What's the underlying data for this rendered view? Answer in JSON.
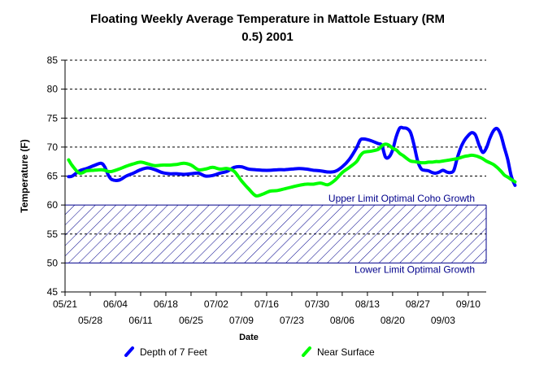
{
  "chart_data": {
    "type": "line",
    "title_line1": "Floating Weekly Average Temperature in Mattole Estuary (RM",
    "title_line2": "0.5) 2001",
    "xlabel": "Date",
    "ylabel": "Temperature (F)",
    "ylim": [
      45,
      85
    ],
    "yticks": [
      "45",
      "50",
      "55",
      "60",
      "65",
      "70",
      "75",
      "80",
      "85"
    ],
    "xlim": [
      "05/21",
      "09/15"
    ],
    "xticks_upper": [
      "05/21",
      "06/04",
      "06/18",
      "07/02",
      "07/16",
      "07/30",
      "08/13",
      "08/27",
      "09/10"
    ],
    "xticks_lower": [
      "05/28",
      "06/11",
      "06/25",
      "07/09",
      "07/23",
      "08/06",
      "08/20",
      "09/03"
    ],
    "grid": "horizontal dashed",
    "legend_position": "bottom",
    "band": {
      "upper": 60,
      "lower": 50,
      "upper_label": "Upper Limit Optimal Coho Growth",
      "lower_label": "Lower Limit Optimal Growth",
      "color": "#00008b"
    },
    "series": [
      {
        "name": "Depth of 7 Feet",
        "color": "#0000ff",
        "points": [
          [
            "05/22",
            64.9
          ],
          [
            "05/23",
            65.0
          ],
          [
            "05/25",
            65.9
          ],
          [
            "05/27",
            66.3
          ],
          [
            "05/29",
            66.8
          ],
          [
            "05/31",
            67.2
          ],
          [
            "06/01",
            66.6
          ],
          [
            "06/02",
            65.2
          ],
          [
            "06/03",
            64.4
          ],
          [
            "06/05",
            64.3
          ],
          [
            "06/07",
            65.0
          ],
          [
            "06/09",
            65.5
          ],
          [
            "06/11",
            66.1
          ],
          [
            "06/13",
            66.4
          ],
          [
            "06/15",
            66.1
          ],
          [
            "06/17",
            65.6
          ],
          [
            "06/19",
            65.4
          ],
          [
            "06/21",
            65.4
          ],
          [
            "06/23",
            65.3
          ],
          [
            "06/25",
            65.4
          ],
          [
            "06/27",
            65.5
          ],
          [
            "06/29",
            65.0
          ],
          [
            "07/01",
            65.1
          ],
          [
            "07/03",
            65.5
          ],
          [
            "07/05",
            65.8
          ],
          [
            "07/07",
            66.5
          ],
          [
            "07/09",
            66.6
          ],
          [
            "07/11",
            66.2
          ],
          [
            "07/13",
            66.1
          ],
          [
            "07/15",
            66.0
          ],
          [
            "07/17",
            66.0
          ],
          [
            "07/19",
            66.1
          ],
          [
            "07/21",
            66.1
          ],
          [
            "07/23",
            66.2
          ],
          [
            "07/25",
            66.3
          ],
          [
            "07/27",
            66.2
          ],
          [
            "07/29",
            66.0
          ],
          [
            "07/31",
            65.9
          ],
          [
            "08/02",
            65.7
          ],
          [
            "08/04",
            65.8
          ],
          [
            "08/06",
            66.6
          ],
          [
            "08/08",
            67.9
          ],
          [
            "08/10",
            69.9
          ],
          [
            "08/11",
            71.2
          ],
          [
            "08/12",
            71.4
          ],
          [
            "08/14",
            71.1
          ],
          [
            "08/16",
            70.6
          ],
          [
            "08/17",
            70.3
          ],
          [
            "08/18",
            68.3
          ],
          [
            "08/19",
            68.3
          ],
          [
            "08/20",
            69.5
          ],
          [
            "08/21",
            71.8
          ],
          [
            "08/22",
            73.3
          ],
          [
            "08/23",
            73.3
          ],
          [
            "08/24",
            73.2
          ],
          [
            "08/25",
            72.5
          ],
          [
            "08/26",
            70.2
          ],
          [
            "08/27",
            67.5
          ],
          [
            "08/28",
            66.2
          ],
          [
            "08/29",
            66.0
          ],
          [
            "08/30",
            65.9
          ],
          [
            "08/31",
            65.6
          ],
          [
            "09/01",
            65.5
          ],
          [
            "09/02",
            65.7
          ],
          [
            "09/03",
            66.0
          ],
          [
            "09/04",
            65.7
          ],
          [
            "09/05",
            65.6
          ],
          [
            "09/06",
            66.0
          ],
          [
            "09/07",
            68.2
          ],
          [
            "09/08",
            70.0
          ],
          [
            "09/09",
            71.2
          ],
          [
            "09/10",
            72.0
          ],
          [
            "09/11",
            72.5
          ],
          [
            "09/12",
            72.1
          ],
          [
            "09/13",
            70.4
          ],
          [
            "09/14",
            69.1
          ],
          [
            "09/15",
            69.8
          ],
          [
            "09/16",
            71.5
          ],
          [
            "09/17",
            72.8
          ],
          [
            "09/18",
            73.2
          ],
          [
            "09/19",
            72.2
          ],
          [
            "09/20",
            70.0
          ],
          [
            "09/21",
            67.8
          ],
          [
            "09/22",
            64.9
          ],
          [
            "09/23",
            63.4
          ]
        ]
      },
      {
        "name": "Near Surface",
        "color": "#00ff00",
        "points": [
          [
            "05/22",
            67.8
          ],
          [
            "05/23",
            66.8
          ],
          [
            "05/25",
            65.5
          ],
          [
            "05/27",
            65.9
          ],
          [
            "05/29",
            66.0
          ],
          [
            "05/31",
            66.1
          ],
          [
            "06/01",
            66.0
          ],
          [
            "06/02",
            65.8
          ],
          [
            "06/03",
            65.8
          ],
          [
            "06/05",
            66.2
          ],
          [
            "06/07",
            66.7
          ],
          [
            "06/09",
            67.1
          ],
          [
            "06/11",
            67.4
          ],
          [
            "06/13",
            67.1
          ],
          [
            "06/15",
            66.8
          ],
          [
            "06/17",
            66.9
          ],
          [
            "06/19",
            66.9
          ],
          [
            "06/21",
            67.0
          ],
          [
            "06/23",
            67.2
          ],
          [
            "06/25",
            66.9
          ],
          [
            "06/27",
            66.1
          ],
          [
            "06/29",
            66.2
          ],
          [
            "07/01",
            66.5
          ],
          [
            "07/03",
            66.2
          ],
          [
            "07/05",
            66.3
          ],
          [
            "07/07",
            65.8
          ],
          [
            "07/09",
            64.2
          ],
          [
            "07/11",
            62.8
          ],
          [
            "07/13",
            61.6
          ],
          [
            "07/15",
            61.9
          ],
          [
            "07/17",
            62.4
          ],
          [
            "07/19",
            62.5
          ],
          [
            "07/21",
            62.8
          ],
          [
            "07/23",
            63.1
          ],
          [
            "07/25",
            63.4
          ],
          [
            "07/27",
            63.6
          ],
          [
            "07/29",
            63.6
          ],
          [
            "07/31",
            63.8
          ],
          [
            "08/02",
            63.5
          ],
          [
            "08/04",
            64.3
          ],
          [
            "08/06",
            65.6
          ],
          [
            "08/08",
            66.5
          ],
          [
            "08/10",
            67.5
          ],
          [
            "08/11",
            68.5
          ],
          [
            "08/12",
            69.1
          ],
          [
            "08/14",
            69.3
          ],
          [
            "08/16",
            69.6
          ],
          [
            "08/17",
            70.2
          ],
          [
            "08/18",
            70.5
          ],
          [
            "08/19",
            70.3
          ],
          [
            "08/20",
            69.8
          ],
          [
            "08/21",
            69.5
          ],
          [
            "08/22",
            68.9
          ],
          [
            "08/23",
            68.5
          ],
          [
            "08/24",
            68.0
          ],
          [
            "08/25",
            67.6
          ],
          [
            "08/26",
            67.5
          ],
          [
            "08/27",
            67.4
          ],
          [
            "08/28",
            67.3
          ],
          [
            "08/29",
            67.3
          ],
          [
            "08/30",
            67.4
          ],
          [
            "08/31",
            67.4
          ],
          [
            "09/01",
            67.5
          ],
          [
            "09/02",
            67.5
          ],
          [
            "09/03",
            67.6
          ],
          [
            "09/04",
            67.7
          ],
          [
            "09/05",
            67.8
          ],
          [
            "09/06",
            67.9
          ],
          [
            "09/07",
            68.0
          ],
          [
            "09/08",
            68.2
          ],
          [
            "09/09",
            68.4
          ],
          [
            "09/10",
            68.5
          ],
          [
            "09/11",
            68.6
          ],
          [
            "09/12",
            68.5
          ],
          [
            "09/13",
            68.3
          ],
          [
            "09/14",
            68.0
          ],
          [
            "09/15",
            67.6
          ],
          [
            "09/16",
            67.3
          ],
          [
            "09/17",
            67.0
          ],
          [
            "09/18",
            66.5
          ],
          [
            "09/19",
            65.9
          ],
          [
            "09/20",
            65.2
          ],
          [
            "09/21",
            64.8
          ],
          [
            "09/22",
            64.4
          ],
          [
            "09/23",
            64.0
          ]
        ]
      }
    ]
  }
}
